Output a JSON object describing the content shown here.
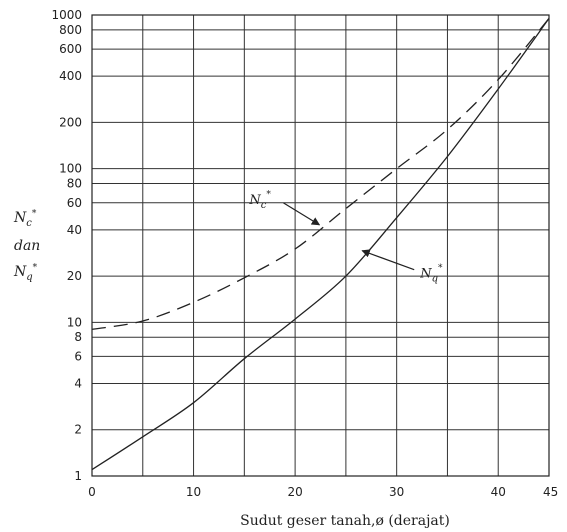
{
  "chart_data": {
    "type": "line",
    "xlabel": "Sudut geser tanah,ø (derajat)",
    "ylabel": {
      "line1": "N",
      "line1_sub": "c",
      "line1_sup": "*",
      "line2": "dan",
      "line3": "N",
      "line3_sub": "q",
      "line3_sup": "*"
    },
    "xlim": [
      0,
      45
    ],
    "ylim": [
      1,
      1000
    ],
    "y_scale": "log",
    "x_ticks": [
      0,
      10,
      20,
      30,
      40,
      45
    ],
    "x_tick_labels": [
      "0",
      "10",
      "20",
      "30",
      "40",
      "45"
    ],
    "y_ticks": [
      1,
      2,
      4,
      6,
      8,
      10,
      20,
      40,
      60,
      80,
      100,
      200,
      400,
      600,
      800,
      1000
    ],
    "y_tick_labels": [
      "1",
      "2",
      "4",
      "6",
      "8",
      "10",
      "20",
      "40",
      "60",
      "80",
      "100",
      "200",
      "400",
      "600",
      "800",
      "1000"
    ],
    "grid": true,
    "series": [
      {
        "name": "Nc*",
        "style": "dashed",
        "x": [
          0,
          5,
          10,
          15,
          20,
          25,
          30,
          35,
          40,
          45
        ],
        "y": [
          9,
          10.2,
          13.5,
          19.5,
          30,
          55,
          100,
          180,
          380,
          950
        ]
      },
      {
        "name": "Nq*",
        "style": "solid",
        "x": [
          0,
          5,
          10,
          15,
          20,
          25,
          30,
          35,
          40,
          45
        ],
        "y": [
          1.1,
          1.8,
          3,
          5.8,
          10.5,
          20,
          48,
          120,
          330,
          950
        ]
      }
    ],
    "annotations": [
      {
        "text": "N",
        "sub": "c",
        "sup": "*",
        "series": "Nc*",
        "at_x": 22
      },
      {
        "text": "N",
        "sub": "q",
        "sup": "*",
        "series": "Nq*",
        "at_x": 27
      }
    ]
  }
}
